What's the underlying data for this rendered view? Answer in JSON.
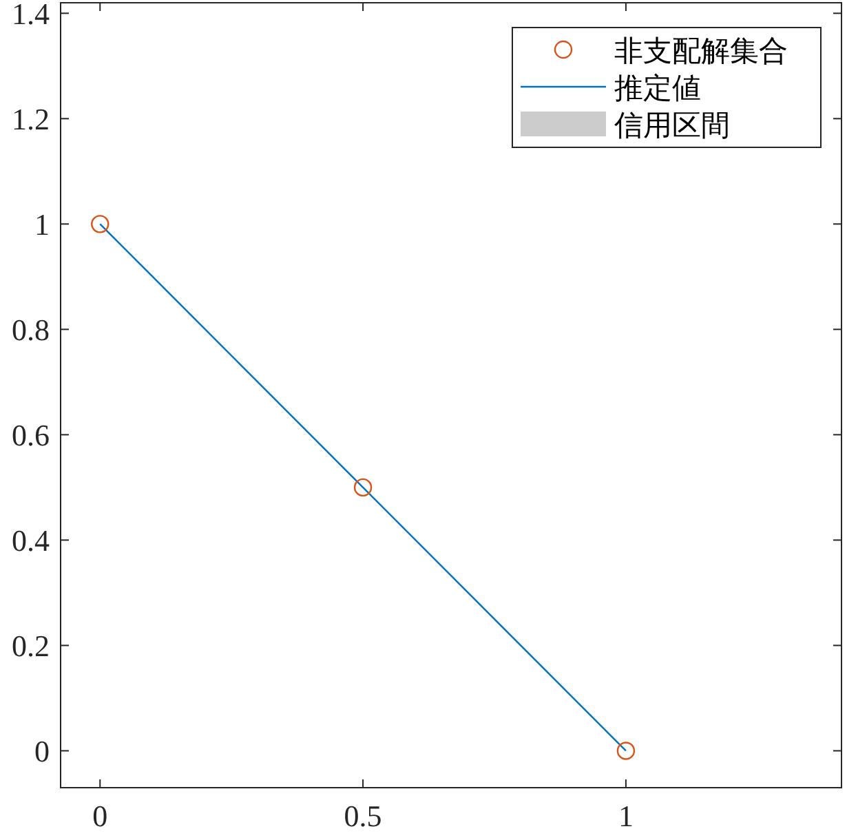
{
  "chart_data": {
    "type": "line",
    "xlim": [
      -0.075,
      1.41
    ],
    "ylim": [
      -0.07,
      1.42
    ],
    "xticks": [
      0,
      0.5,
      1
    ],
    "yticks": [
      0,
      0.2,
      0.4,
      0.6,
      0.8,
      1,
      1.2,
      1.4
    ],
    "legend": "top right",
    "grid": false,
    "series": [
      {
        "name": "非支配解集合",
        "type": "scatter",
        "marker": "circle",
        "color": "#d95319",
        "x": [
          0,
          0.5,
          1
        ],
        "values": [
          1,
          0.5,
          0
        ]
      },
      {
        "name": "推定値",
        "line_style": "solid",
        "color": "#0072bd",
        "x": [
          0,
          0.5,
          1
        ],
        "values": [
          1,
          0.5,
          0
        ]
      },
      {
        "name": "信用区間",
        "type": "area",
        "color": "#cccccc"
      }
    ]
  }
}
